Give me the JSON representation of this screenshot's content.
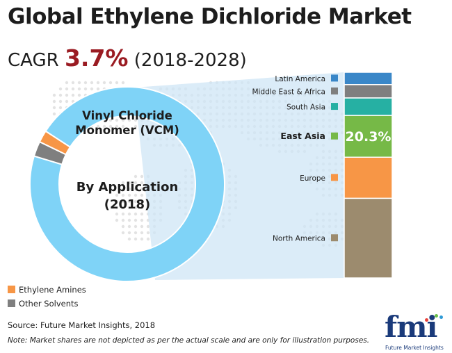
{
  "title": "Global Ethylene Dichloride Market",
  "cagr": {
    "label": "CAGR",
    "value": "3.7%",
    "period": "(2018-2028)"
  },
  "source": "Source: Future Market Insights, 2018",
  "note": "Note: Market shares are not depicted as per the actual scale and are only for illustration purposes.",
  "logo": {
    "text": "fmi",
    "subtitle": "Future Market Insights"
  },
  "chart_data": [
    {
      "type": "pie",
      "variant": "donut",
      "center_label_line1": "By Application",
      "center_label_line2": "(2018)",
      "slices": [
        {
          "name": "Vinyl Chloride Monomer (VCM)",
          "value": 95.5,
          "color": "#7fd3f7",
          "label_line1": "Vinyl Chloride",
          "label_line2": "Monomer (VCM)"
        },
        {
          "name": "Other Solvents",
          "value": 2.5,
          "color": "#7f7f7f"
        },
        {
          "name": "Ethylene Amines",
          "value": 2.0,
          "color": "#f79646"
        }
      ],
      "legend": [
        "Ethylene Amines",
        "Other Solvents"
      ],
      "legend_position": "bottom-left"
    },
    {
      "type": "bar",
      "variant": "stacked-single-column",
      "highlight_label": "20.3%",
      "categories": [
        "Latin America",
        "Middle East & Africa",
        "South Asia",
        "East Asia",
        "Europe",
        "North America"
      ],
      "values": [
        6.0,
        6.5,
        8.5,
        20.3,
        20.0,
        38.7
      ],
      "colors": [
        "#3a87c8",
        "#7f7f7f",
        "#26b0a3",
        "#76b947",
        "#f79646",
        "#9c8b6e"
      ],
      "highlighted_category": "East Asia"
    }
  ]
}
